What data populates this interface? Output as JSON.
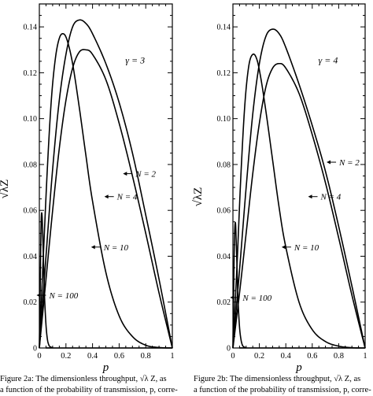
{
  "captions": {
    "a_line1": "Figure 2a: The dimensionless throughput, √λ Z, as",
    "a_line2": "a function of the probability of transmission, p, corre-",
    "b_line1": "Figure 2b: The dimensionless throughput, √λ Z, as",
    "b_line2": "a function of the probability of transmission, p, corre-"
  },
  "chart_data": [
    {
      "type": "line",
      "panel": "2a",
      "xlabel": "p",
      "ylabel": "√λZ",
      "xlim": [
        0,
        1
      ],
      "ylim": [
        0,
        0.15
      ],
      "xticks": [
        "0",
        "0.2",
        "0.4",
        "0.6",
        "0.8",
        "1"
      ],
      "yticks": [
        "0",
        "0.02",
        "0.04",
        "0.06",
        "0.08",
        "0.10",
        "0.12",
        "0.14"
      ],
      "annotation": "γ = 3",
      "grid": false,
      "series": [
        {
          "name": "N = 2",
          "label_at": [
            0.7,
            0.076
          ],
          "x": [
            0,
            0.05,
            0.1,
            0.15,
            0.2,
            0.25,
            0.3,
            0.35,
            0.4,
            0.5,
            0.6,
            0.7,
            0.8,
            0.9,
            1.0
          ],
          "y": [
            0,
            0.04,
            0.078,
            0.108,
            0.128,
            0.14,
            0.143,
            0.1415,
            0.137,
            0.124,
            0.107,
            0.085,
            0.058,
            0.03,
            0
          ]
        },
        {
          "name": "N = 4",
          "label_at": [
            0.56,
            0.066
          ],
          "x": [
            0,
            0.05,
            0.1,
            0.15,
            0.2,
            0.25,
            0.3,
            0.35,
            0.4,
            0.5,
            0.6,
            0.7,
            0.8,
            0.9,
            1.0
          ],
          "y": [
            0,
            0.03,
            0.06,
            0.087,
            0.108,
            0.122,
            0.129,
            0.13,
            0.128,
            0.117,
            0.098,
            0.075,
            0.05,
            0.024,
            0
          ]
        },
        {
          "name": "N = 10",
          "label_at": [
            0.46,
            0.044
          ],
          "x": [
            0,
            0.03,
            0.06,
            0.09,
            0.12,
            0.15,
            0.18,
            0.21,
            0.25,
            0.3,
            0.35,
            0.4,
            0.5,
            0.6,
            0.7,
            0.8,
            0.9,
            1.0
          ],
          "y": [
            0,
            0.04,
            0.078,
            0.108,
            0.126,
            0.135,
            0.137,
            0.134,
            0.124,
            0.105,
            0.084,
            0.064,
            0.033,
            0.014,
            0.005,
            0.0012,
            0.0002,
            0
          ]
        },
        {
          "name": "N = 100",
          "label_at": [
            0.05,
            0.023
          ],
          "x": [
            0,
            0.005,
            0.01,
            0.015,
            0.02,
            0.025,
            0.03,
            0.035,
            0.04,
            0.05,
            0.06,
            0.07,
            0.08,
            0.1,
            0.12,
            1.0
          ],
          "y": [
            0,
            0.02,
            0.042,
            0.057,
            0.058,
            0.05,
            0.04,
            0.03,
            0.021,
            0.01,
            0.004,
            0.0015,
            0.0006,
            0.0001,
            0,
            0
          ]
        }
      ]
    },
    {
      "type": "line",
      "panel": "2b",
      "xlabel": "p",
      "ylabel": "√λZ",
      "xlim": [
        0,
        1
      ],
      "ylim": [
        0,
        0.15
      ],
      "xticks": [
        "0",
        "0.2",
        "0.4",
        "0.6",
        "0.8",
        "1"
      ],
      "yticks": [
        "0",
        "0.02",
        "0.04",
        "0.06",
        "0.08",
        "0.10",
        "0.12",
        "0.14"
      ],
      "annotation": "γ = 4",
      "grid": false,
      "series": [
        {
          "name": "N = 2",
          "label_at": [
            0.78,
            0.081
          ],
          "x": [
            0,
            0.05,
            0.1,
            0.15,
            0.2,
            0.25,
            0.3,
            0.35,
            0.4,
            0.5,
            0.6,
            0.7,
            0.8,
            0.9,
            1.0
          ],
          "y": [
            0,
            0.034,
            0.07,
            0.102,
            0.124,
            0.136,
            0.139,
            0.137,
            0.131,
            0.115,
            0.097,
            0.077,
            0.053,
            0.027,
            0
          ]
        },
        {
          "name": "N = 4",
          "label_at": [
            0.64,
            0.066
          ],
          "x": [
            0,
            0.05,
            0.1,
            0.15,
            0.2,
            0.25,
            0.3,
            0.35,
            0.4,
            0.5,
            0.6,
            0.7,
            0.8,
            0.9,
            1.0
          ],
          "y": [
            0,
            0.024,
            0.05,
            0.076,
            0.098,
            0.114,
            0.122,
            0.124,
            0.122,
            0.111,
            0.093,
            0.072,
            0.048,
            0.023,
            0
          ]
        },
        {
          "name": "N = 10",
          "label_at": [
            0.44,
            0.044
          ],
          "x": [
            0,
            0.03,
            0.06,
            0.09,
            0.12,
            0.15,
            0.18,
            0.21,
            0.25,
            0.3,
            0.35,
            0.4,
            0.5,
            0.6,
            0.7,
            0.8,
            0.9,
            1.0
          ],
          "y": [
            0,
            0.035,
            0.075,
            0.106,
            0.123,
            0.128,
            0.126,
            0.118,
            0.103,
            0.082,
            0.061,
            0.044,
            0.02,
            0.008,
            0.0028,
            0.0008,
            0.0001,
            0
          ]
        },
        {
          "name": "N = 100",
          "label_at": [
            0.05,
            0.022
          ],
          "x": [
            0,
            0.005,
            0.01,
            0.015,
            0.02,
            0.025,
            0.03,
            0.035,
            0.04,
            0.05,
            0.06,
            0.07,
            0.08,
            0.1,
            0.12,
            1.0
          ],
          "y": [
            0,
            0.022,
            0.043,
            0.053,
            0.054,
            0.046,
            0.037,
            0.027,
            0.019,
            0.009,
            0.004,
            0.0015,
            0.0006,
            0.0001,
            0,
            0
          ]
        }
      ]
    }
  ]
}
